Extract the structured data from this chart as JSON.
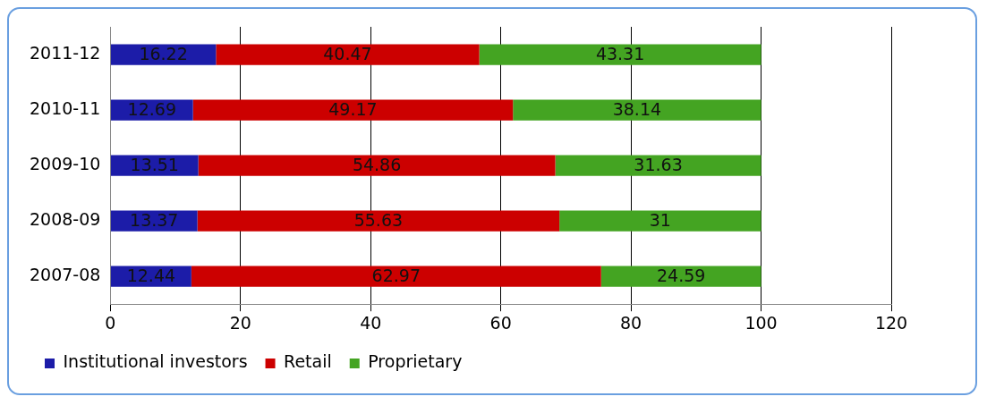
{
  "chart_data": {
    "type": "bar",
    "orientation": "horizontal",
    "stacked": true,
    "categories": [
      "2011-12",
      "2010-11",
      "2009-10",
      "2008-09",
      "2007-08"
    ],
    "series": [
      {
        "name": "Institutional investors",
        "color": "#1c1ca8",
        "values": [
          16.22,
          12.69,
          13.51,
          13.37,
          12.44
        ]
      },
      {
        "name": "Retail",
        "color": "#cc0000",
        "values": [
          40.47,
          49.17,
          54.86,
          55.63,
          62.97
        ]
      },
      {
        "name": "Proprietary",
        "color": "#44a422",
        "values": [
          43.31,
          38.14,
          31.63,
          31,
          24.59
        ]
      }
    ],
    "xlim": [
      0,
      120
    ],
    "xticks": [
      0,
      20,
      40,
      60,
      80,
      100,
      120
    ],
    "grid": "x",
    "legend": "bottom",
    "data_labels": true
  }
}
